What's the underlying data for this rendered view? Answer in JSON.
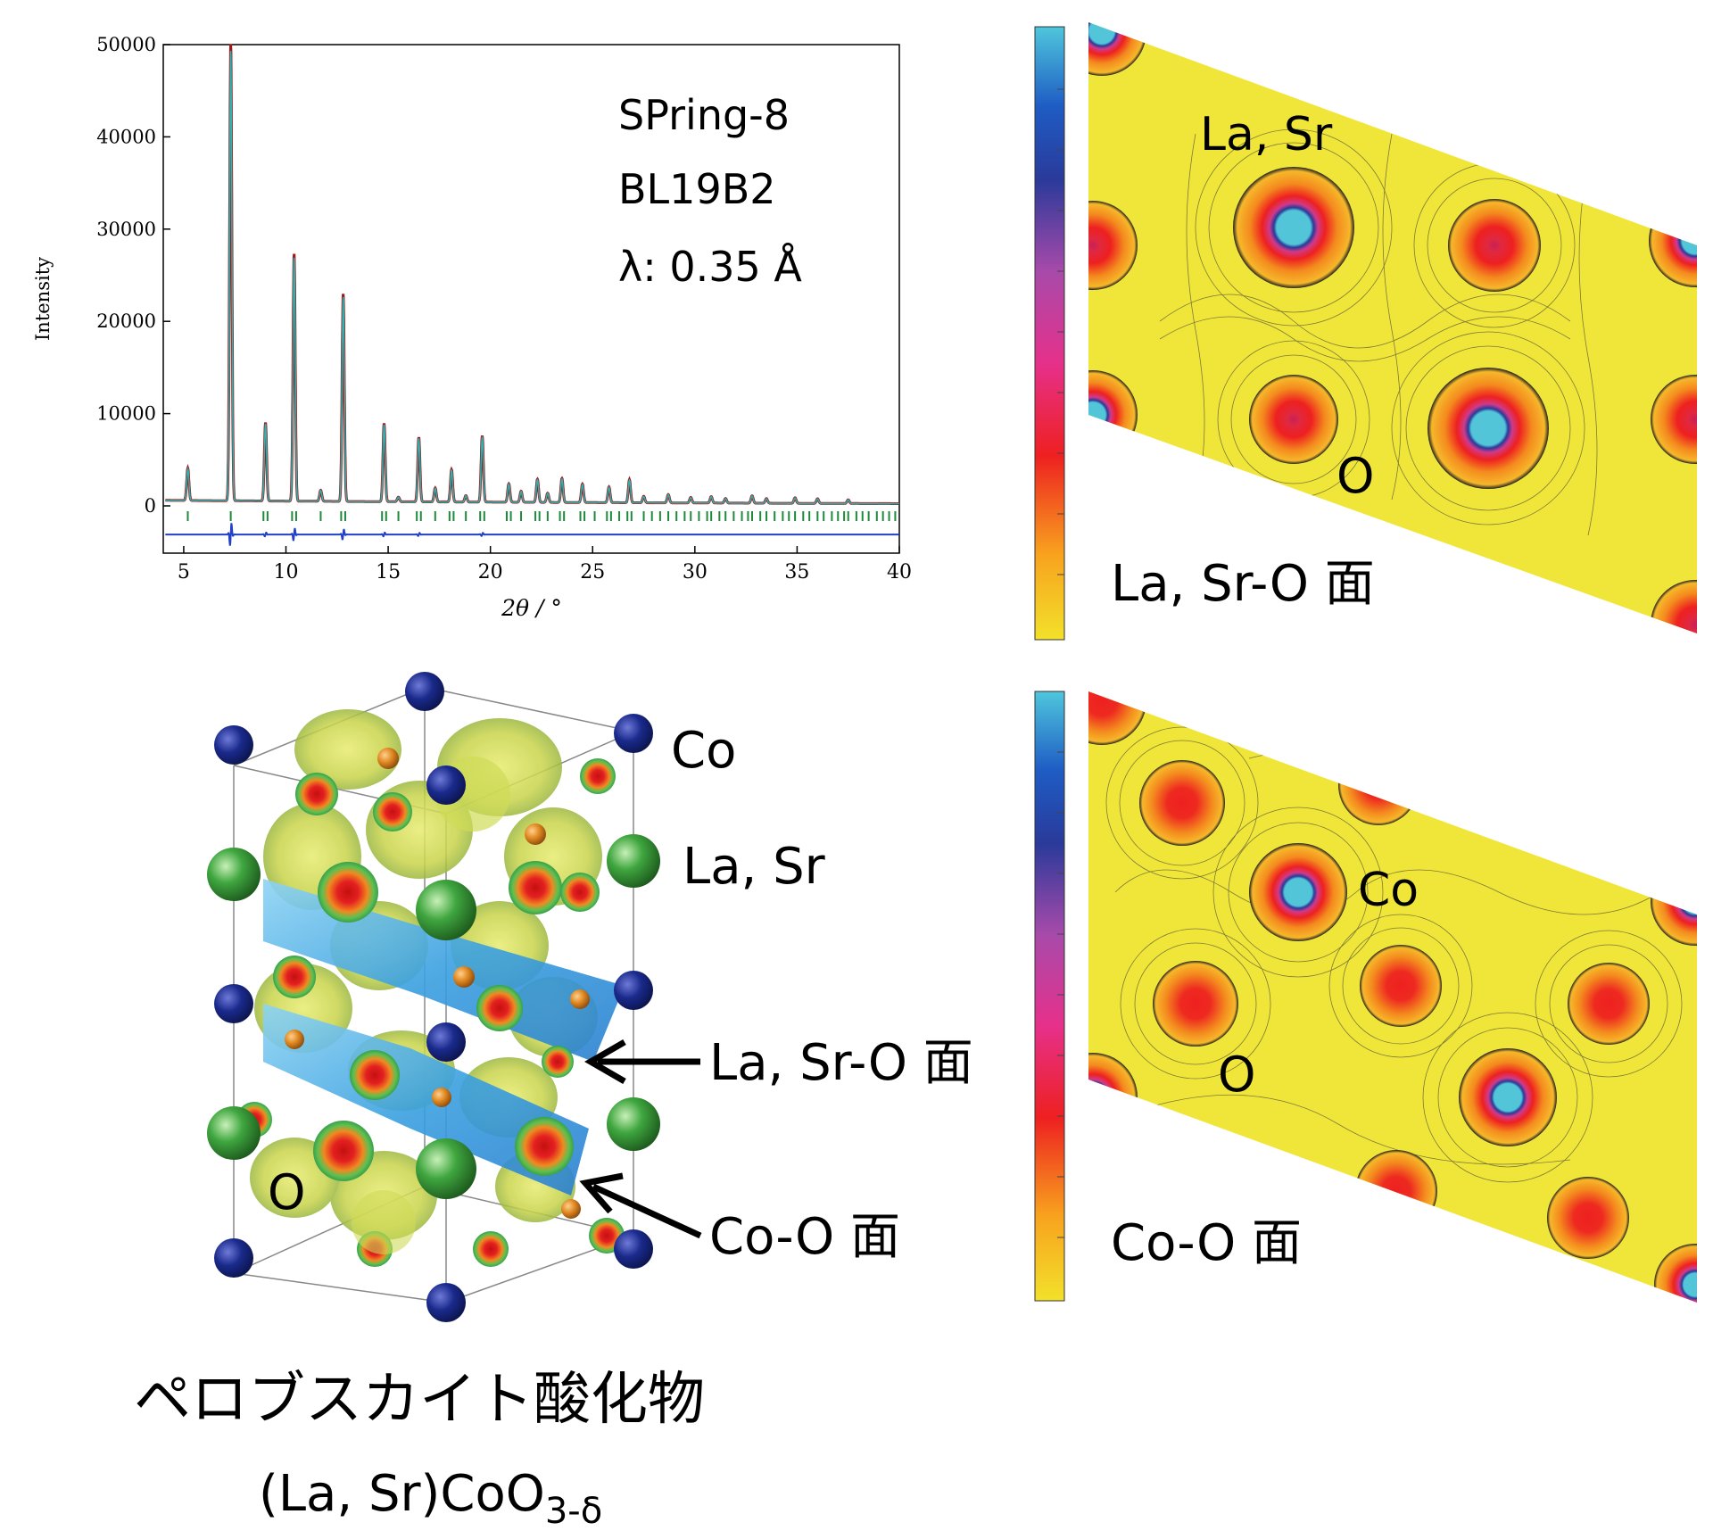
{
  "chart_data": {
    "type": "line",
    "xlabel": "2θ / °",
    "ylabel": "Intensity",
    "xlim": [
      4,
      40
    ],
    "ylim": [
      -6000,
      50000
    ],
    "x_ticks": [
      5,
      10,
      15,
      20,
      25,
      30,
      35,
      40
    ],
    "y_ticks": [
      0,
      10000,
      20000,
      30000,
      40000,
      50000
    ],
    "grid": false,
    "background": 600,
    "peaks": [
      [
        5.2,
        3500
      ],
      [
        7.3,
        49500
      ],
      [
        9.0,
        8500
      ],
      [
        10.4,
        26800
      ],
      [
        11.7,
        1200
      ],
      [
        12.8,
        22500
      ],
      [
        14.8,
        8500
      ],
      [
        15.5,
        500
      ],
      [
        16.5,
        7000
      ],
      [
        17.3,
        1500
      ],
      [
        18.1,
        3500
      ],
      [
        18.8,
        700
      ],
      [
        19.6,
        7200
      ],
      [
        20.9,
        2000
      ],
      [
        21.5,
        1200
      ],
      [
        22.3,
        2500
      ],
      [
        22.8,
        1000
      ],
      [
        23.5,
        2600
      ],
      [
        24.5,
        2000
      ],
      [
        25.8,
        1700
      ],
      [
        26.8,
        2500
      ],
      [
        27.5,
        700
      ],
      [
        28.7,
        900
      ],
      [
        29.8,
        600
      ],
      [
        30.8,
        700
      ],
      [
        31.5,
        500
      ],
      [
        32.8,
        800
      ],
      [
        33.5,
        500
      ],
      [
        34.9,
        600
      ],
      [
        36.0,
        500
      ],
      [
        37.5,
        400
      ]
    ],
    "reflection_ticks": [
      5.2,
      7.3,
      8.9,
      9.1,
      10.3,
      10.5,
      11.7,
      12.7,
      12.9,
      14.7,
      14.9,
      15.5,
      16.4,
      16.6,
      17.3,
      18.0,
      18.2,
      18.8,
      19.5,
      19.7,
      20.8,
      21.0,
      21.5,
      22.2,
      22.4,
      22.8,
      23.4,
      23.6,
      24.4,
      24.6,
      25.1,
      25.7,
      25.9,
      26.3,
      26.7,
      26.9,
      27.5,
      27.9,
      28.3,
      28.7,
      29.1,
      29.5,
      29.8,
      30.2,
      30.6,
      30.8,
      31.2,
      31.5,
      31.9,
      32.3,
      32.6,
      32.8,
      33.2,
      33.5,
      33.9,
      34.3,
      34.6,
      34.9,
      35.3,
      35.6,
      36.0,
      36.3,
      36.7,
      37.0,
      37.3,
      37.5,
      37.9,
      38.2,
      38.5,
      38.9,
      39.2,
      39.5,
      39.8
    ],
    "tick_color": "#1e8a3a",
    "difference_offset": -3100,
    "series": [],
    "colors": {
      "observed": "#a01818",
      "calculated": "#2ab5b5",
      "difference": "#2340c8"
    }
  },
  "panels": {
    "xrd_annotation": [
      "SPring-8",
      "BL19B2",
      "λ: 0.35 Å"
    ],
    "top_map": {
      "atom_label_1": "La, Sr",
      "atom_label_2": "O",
      "plane_label": "La, Sr-O 面"
    },
    "bottom_map": {
      "atom_label_1": "Co",
      "atom_label_2": "O",
      "plane_label": "Co-O 面"
    },
    "structure": {
      "label_co": "Co",
      "label_lasr": "La, Sr",
      "label_o": "O",
      "arrow_label_1": "La, Sr-O 面",
      "arrow_label_2": "Co-O 面",
      "title_ja": "ペロブスカイト酸化物",
      "formula_main": "(La, Sr)CoO",
      "formula_sub": "3-δ"
    }
  },
  "colors": {
    "colorbar": [
      "#f2e12a",
      "#f8a21e",
      "#ee2020",
      "#e6308a",
      "#a84aaa",
      "#2a3a9a",
      "#1e5cc4",
      "#4fc6dc"
    ],
    "map_background": "#f0e63a",
    "co_atom": "#1a2a8c",
    "lasr_atom": "#3fa63f",
    "o_atom": "#e08820",
    "plane_blue": "#3aa0e0"
  }
}
